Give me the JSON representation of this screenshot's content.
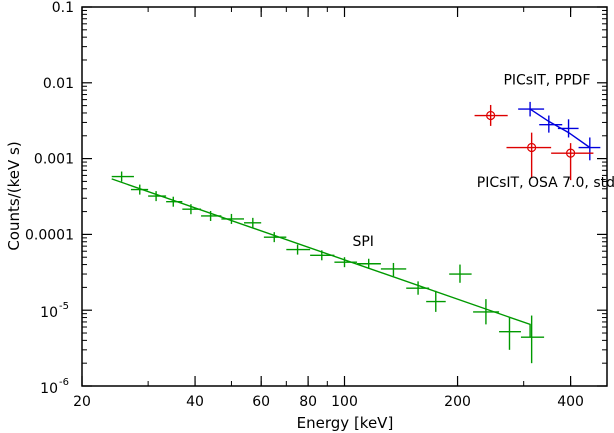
{
  "chart_data": {
    "type": "scatter",
    "title": "",
    "xlabel": "Energy [keV]",
    "ylabel": "Counts/(keV s)",
    "x_scale": "log",
    "y_scale": "log",
    "xlim": [
      20,
      500
    ],
    "ylim": [
      1e-06,
      0.1
    ],
    "grid": false,
    "x_ticks": [
      {
        "value": 20,
        "label": "20"
      },
      {
        "value": 40,
        "label": "40"
      },
      {
        "value": 60,
        "label": "60"
      },
      {
        "value": 80,
        "label": "80"
      },
      {
        "value": 100,
        "label": "100"
      },
      {
        "value": 200,
        "label": "200"
      },
      {
        "value": 400,
        "label": "400"
      }
    ],
    "y_ticks": [
      {
        "value": 0.1,
        "label": "0.1"
      },
      {
        "value": 0.01,
        "label": "0.01"
      },
      {
        "value": 0.001,
        "label": "0.001"
      },
      {
        "value": 0.0001,
        "label": "0.0001"
      },
      {
        "value": 1e-05,
        "label": "10",
        "exp": "-5"
      },
      {
        "value": 1e-06,
        "label": "10",
        "exp": "-6"
      }
    ],
    "series": [
      {
        "name": "SPI",
        "color": "#009900",
        "marker": "cross",
        "label_at": [
          105,
          7e-05
        ],
        "points": [
          {
            "x": 25.5,
            "xlo": 24,
            "xhi": 27.5,
            "y": 0.00058
          },
          {
            "x": 28.5,
            "xlo": 27,
            "xhi": 30,
            "y": 0.00039
          },
          {
            "x": 31.5,
            "xlo": 30,
            "xhi": 33.5,
            "y": 0.00032
          },
          {
            "x": 35,
            "xlo": 33.5,
            "xhi": 37,
            "y": 0.00027
          },
          {
            "x": 39,
            "xlo": 37,
            "xhi": 41.5,
            "y": 0.000215
          },
          {
            "x": 44,
            "xlo": 41.5,
            "xhi": 47,
            "y": 0.000175
          },
          {
            "x": 50,
            "xlo": 47,
            "xhi": 54,
            "y": 0.00016
          },
          {
            "x": 57,
            "xlo": 54,
            "xhi": 60,
            "y": 0.000142
          },
          {
            "x": 65,
            "xlo": 61,
            "xhi": 70,
            "y": 9.2e-05
          },
          {
            "x": 75,
            "xlo": 70,
            "xhi": 81,
            "y": 6.3e-05
          },
          {
            "x": 87,
            "xlo": 81,
            "xhi": 94,
            "y": 5.3e-05
          },
          {
            "x": 100,
            "xlo": 94,
            "xhi": 108,
            "y": 4.3e-05
          },
          {
            "x": 116,
            "xlo": 108,
            "xhi": 125,
            "y": 4.1e-05
          },
          {
            "x": 135,
            "xlo": 125,
            "xhi": 146,
            "y": 3.5e-05,
            "ylo": 2.8e-05,
            "yhi": 4.2e-05
          },
          {
            "x": 157,
            "xlo": 146,
            "xhi": 168,
            "y": 1.95e-05,
            "ylo": 1.6e-05,
            "yhi": 2.4e-05
          },
          {
            "x": 175,
            "xlo": 165,
            "xhi": 186,
            "y": 1.3e-05,
            "ylo": 9.5e-06,
            "yhi": 1.8e-05
          },
          {
            "x": 203,
            "xlo": 190,
            "xhi": 218,
            "y": 3e-05,
            "ylo": 2.3e-05,
            "yhi": 4e-05
          },
          {
            "x": 238,
            "xlo": 220,
            "xhi": 258,
            "y": 9.5e-06,
            "ylo": 6.5e-06,
            "yhi": 1.4e-05
          },
          {
            "x": 275,
            "xlo": 258,
            "xhi": 295,
            "y": 5.2e-06,
            "ylo": 3e-06,
            "yhi": 8e-06
          },
          {
            "x": 315,
            "xlo": 295,
            "xhi": 340,
            "y": 4.4e-06,
            "ylo": 2e-06,
            "yhi": 8.5e-06
          }
        ],
        "model_line": [
          [
            24,
            0.00054
          ],
          [
            312,
            6.5e-06
          ],
          [
            312,
            4.4e-06
          ]
        ]
      },
      {
        "name": "PICsIT, PPDF",
        "color": "#0000dd",
        "marker": "cross",
        "label_at": [
          265,
          0.0095
        ],
        "points": [
          {
            "x": 312,
            "xlo": 290,
            "xhi": 340,
            "y": 0.0045,
            "ylo": 0.0036,
            "yhi": 0.0056
          },
          {
            "x": 350,
            "xlo": 330,
            "xhi": 380,
            "y": 0.0028,
            "ylo": 0.0022,
            "yhi": 0.0037
          },
          {
            "x": 395,
            "xlo": 370,
            "xhi": 420,
            "y": 0.0025,
            "ylo": 0.0019,
            "yhi": 0.0033
          },
          {
            "x": 450,
            "xlo": 420,
            "xhi": 480,
            "y": 0.0014,
            "ylo": 0.00095,
            "yhi": 0.0019
          }
        ],
        "model_line": [
          [
            312,
            0.0045
          ],
          [
            350,
            0.0031
          ],
          [
            395,
            0.0022
          ],
          [
            450,
            0.0014
          ]
        ]
      },
      {
        "name": "PICsIT, OSA 7.0, std map",
        "color": "#dd0000",
        "marker": "circle-cross",
        "label_at": [
          225,
          0.00042
        ],
        "points": [
          {
            "x": 245,
            "xlo": 222,
            "xhi": 272,
            "y": 0.0037,
            "ylo": 0.0027,
            "yhi": 0.0051
          },
          {
            "x": 315,
            "xlo": 270,
            "xhi": 355,
            "y": 0.0014,
            "ylo": 0.00055,
            "yhi": 0.0022
          },
          {
            "x": 400,
            "xlo": 355,
            "xhi": 460,
            "y": 0.00118,
            "ylo": 0.00052,
            "yhi": 0.0016
          }
        ]
      }
    ]
  }
}
